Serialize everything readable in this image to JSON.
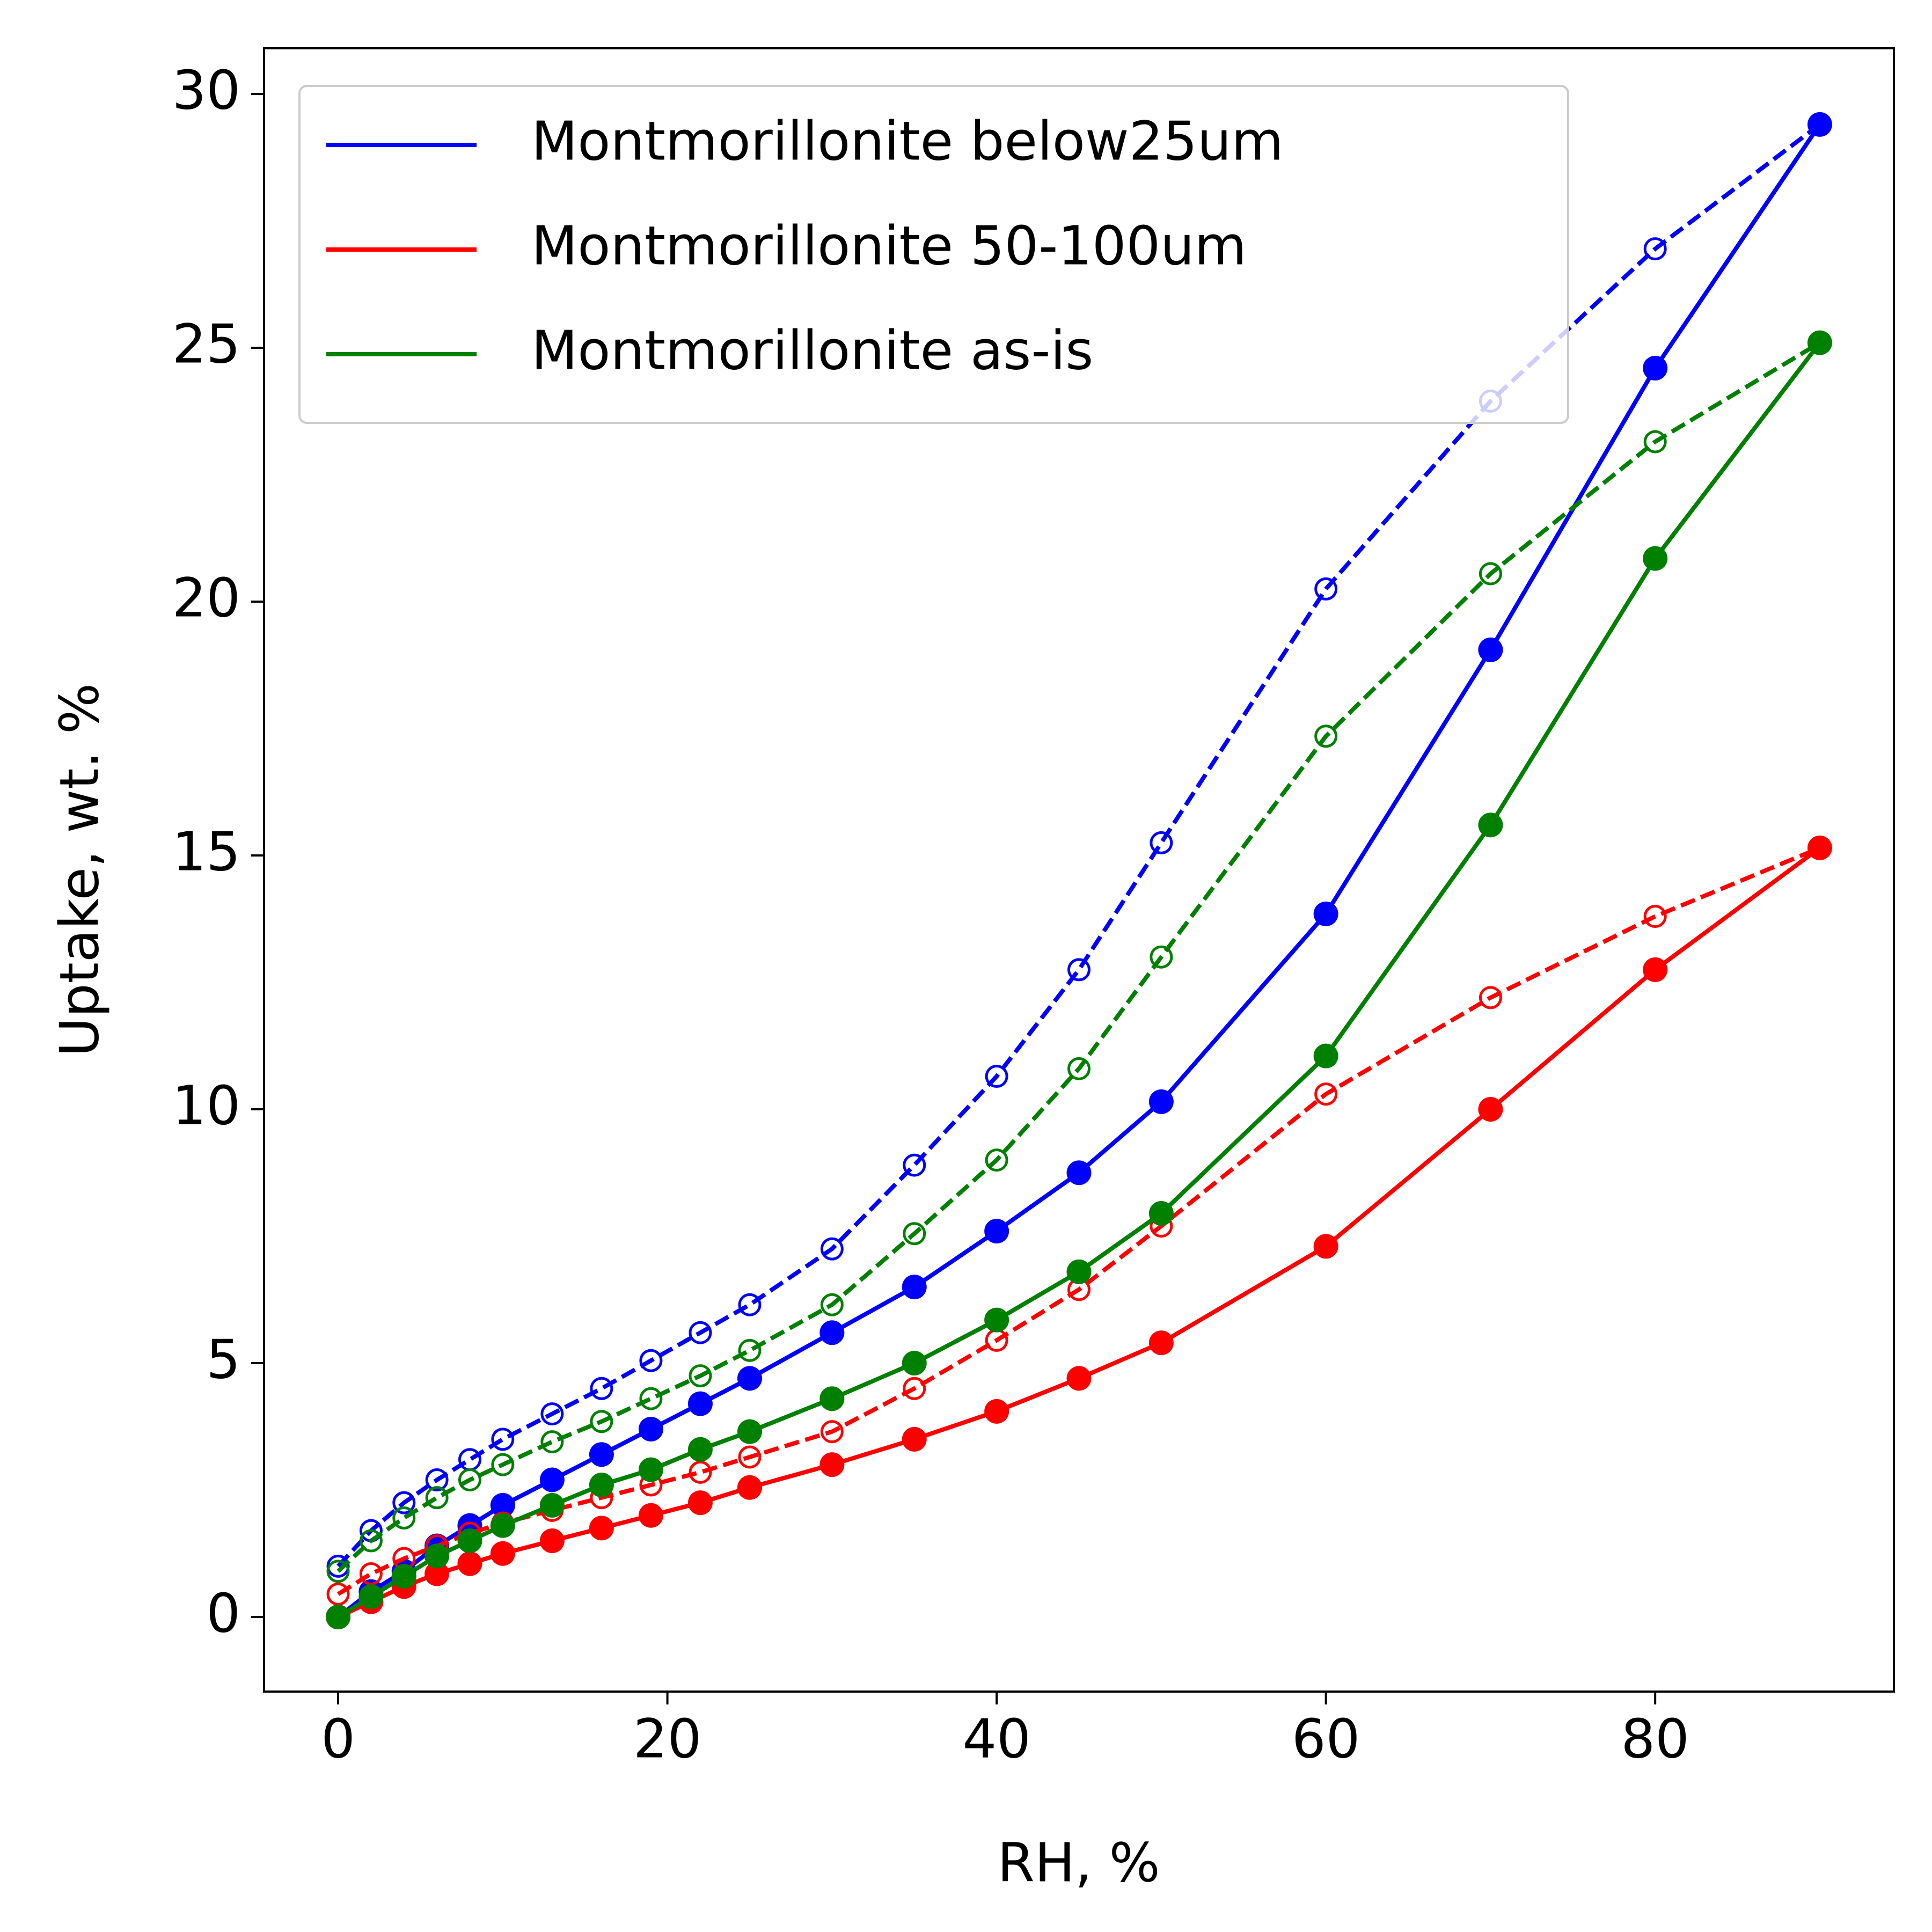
{
  "chart_data": {
    "type": "line",
    "title": "",
    "xlabel": "RH, %",
    "ylabel": "Uptake, wt. %",
    "xlim": [
      -4.5,
      94.5
    ],
    "ylim": [
      -1.47,
      30.9
    ],
    "xticks": [
      0,
      20,
      40,
      60,
      80
    ],
    "yticks": [
      0,
      5,
      10,
      15,
      20,
      25,
      30
    ],
    "grid": false,
    "legend_position": "top-left",
    "x_adsorption": [
      0,
      2,
      4,
      6,
      8,
      10,
      13,
      16,
      19,
      22,
      25,
      30,
      35,
      40,
      45,
      50,
      60,
      70,
      80,
      90
    ],
    "x_desorption": [
      0,
      2,
      4,
      6,
      8,
      10,
      13,
      16,
      19,
      22,
      25,
      30,
      35,
      40,
      45,
      50,
      60,
      70,
      80,
      90
    ],
    "series": [
      {
        "name": "Montmorillonite below25um",
        "color": "#0000ff",
        "adsorption": [
          0.0,
          0.5,
          0.9,
          1.4,
          1.8,
          2.2,
          2.7,
          3.2,
          3.7,
          4.2,
          4.7,
          5.6,
          6.5,
          7.6,
          8.75,
          10.15,
          13.85,
          19.05,
          24.6,
          29.4
        ],
        "desorption": [
          1.0,
          1.7,
          2.25,
          2.7,
          3.1,
          3.5,
          4.0,
          4.5,
          5.05,
          5.6,
          6.15,
          7.25,
          8.9,
          10.65,
          12.75,
          15.25,
          20.25,
          23.95,
          26.95,
          29.4
        ]
      },
      {
        "name": "Montmorillonite 50-100um",
        "color": "#ff0000",
        "adsorption": [
          0.0,
          0.3,
          0.6,
          0.85,
          1.05,
          1.25,
          1.5,
          1.75,
          2.0,
          2.25,
          2.55,
          3.0,
          3.5,
          4.05,
          4.7,
          5.4,
          7.3,
          10.0,
          12.75,
          15.15
        ],
        "desorption": [
          0.45,
          0.85,
          1.15,
          1.4,
          1.65,
          1.85,
          2.1,
          2.35,
          2.6,
          2.85,
          3.15,
          3.65,
          4.5,
          5.45,
          6.45,
          7.7,
          10.3,
          12.2,
          13.8,
          15.15
        ]
      },
      {
        "name": "Montmorillonite as-is",
        "color": "#008000",
        "adsorption": [
          0.0,
          0.4,
          0.8,
          1.2,
          1.5,
          1.8,
          2.2,
          2.6,
          2.9,
          3.3,
          3.65,
          4.3,
          5.0,
          5.85,
          6.8,
          7.95,
          11.05,
          15.6,
          20.85,
          25.1
        ],
        "desorption": [
          0.9,
          1.5,
          1.95,
          2.35,
          2.7,
          3.0,
          3.45,
          3.85,
          4.3,
          4.75,
          5.25,
          6.15,
          7.55,
          9.0,
          10.8,
          13.0,
          17.35,
          20.55,
          23.15,
          25.1
        ]
      }
    ]
  }
}
